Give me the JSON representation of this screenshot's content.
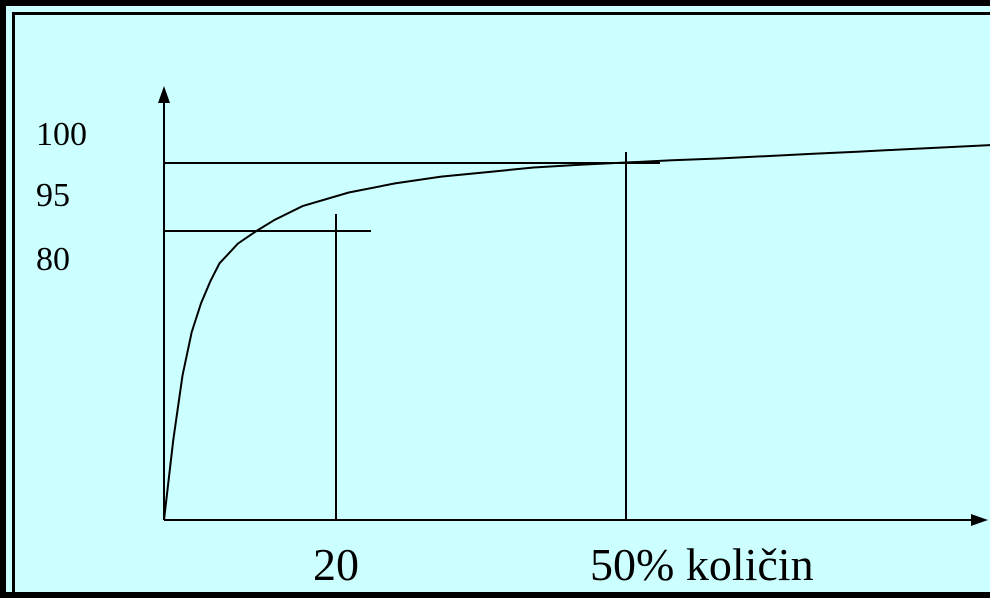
{
  "chart_data": {
    "type": "line",
    "title": "",
    "xlabel": "",
    "ylabel": "",
    "y_tick_labels": [
      "100",
      "95",
      "80"
    ],
    "x_tick_labels": [
      "20",
      "50% količin"
    ],
    "grid": false,
    "series": [
      {
        "x": [
          0,
          1,
          2,
          3,
          4,
          5,
          6,
          8,
          10,
          12,
          15,
          20,
          25,
          30,
          35,
          40,
          45,
          50,
          55,
          60,
          65,
          70,
          75,
          80,
          85,
          90
        ],
        "y": [
          0,
          22,
          40,
          52,
          60,
          66,
          71,
          76.5,
          80,
          82.5,
          85.5,
          88.5,
          90.5,
          92,
          93,
          94,
          94.6,
          95.1,
          95.6,
          96,
          96.5,
          97,
          97.5,
          98,
          98.5,
          99
        ]
      }
    ],
    "reference_lines": [
      {
        "x": 20,
        "y": 80
      },
      {
        "x": 50,
        "y": 95
      }
    ]
  }
}
